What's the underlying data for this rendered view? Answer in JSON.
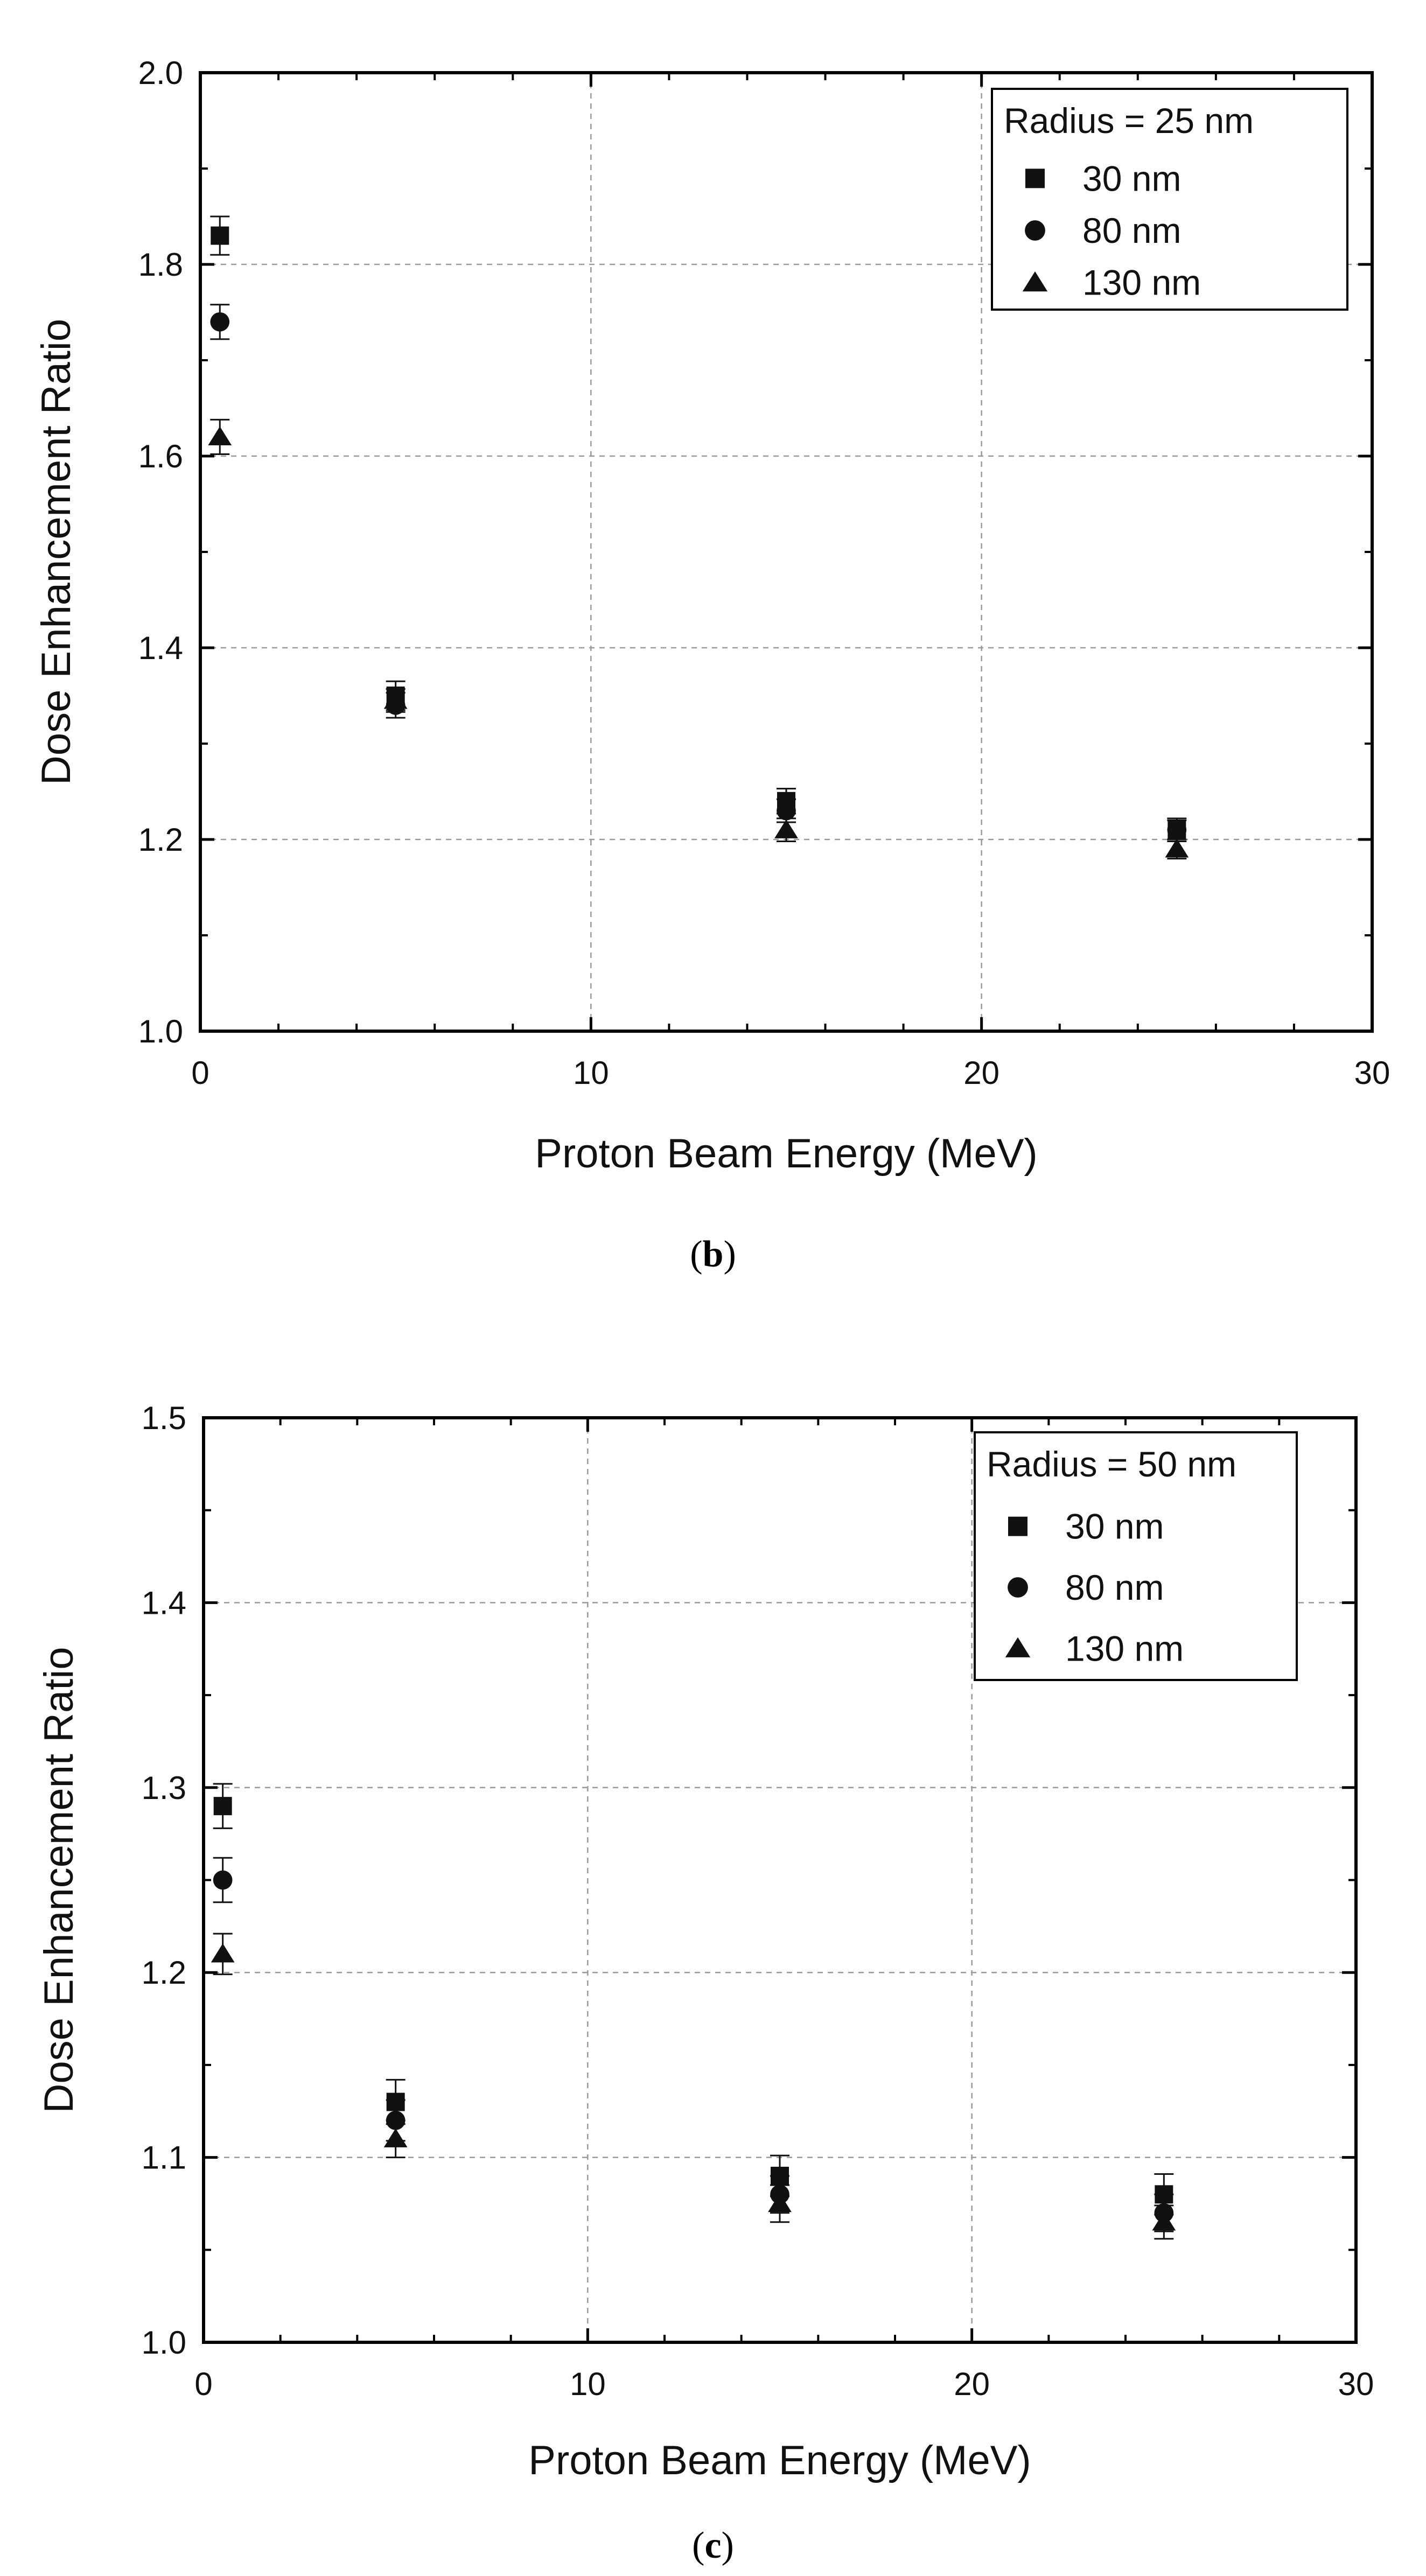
{
  "panels": [
    {
      "caption": {
        "open": "(",
        "letter": "b",
        "close": ")"
      }
    },
    {
      "caption": {
        "open": "(",
        "letter": "c",
        "close": ")"
      }
    }
  ],
  "colors": {
    "marker": "#111111",
    "grid": "#9a9a9a",
    "axis": "#000000"
  },
  "chart_data": [
    {
      "type": "scatter",
      "title": "",
      "xlabel": "Proton Beam Energy (MeV)",
      "ylabel": "Dose Enhancement Ratio",
      "xlim": [
        0,
        30
      ],
      "ylim": [
        1.0,
        2.0
      ],
      "xticks": [
        0,
        10,
        20,
        30
      ],
      "yticks": [
        1.0,
        1.2,
        1.4,
        1.6,
        1.8,
        2.0
      ],
      "xtick_labels": [
        "0",
        "10",
        "20",
        "30"
      ],
      "ytick_labels": [
        "1.0",
        "1.2",
        "1.4",
        "1.6",
        "1.8",
        "2.0"
      ],
      "grid": true,
      "legend_title": "Radius = 25 nm",
      "legend_position": "top-right",
      "series": [
        {
          "name": "30 nm",
          "marker": "square",
          "x": [
            0.5,
            5,
            15,
            25
          ],
          "y": [
            1.83,
            1.35,
            1.24,
            1.21
          ],
          "err": [
            0.02,
            0.015,
            0.013,
            0.012
          ]
        },
        {
          "name": "80 nm",
          "marker": "circle",
          "x": [
            0.5,
            5,
            15,
            25
          ],
          "y": [
            1.74,
            1.34,
            1.23,
            1.21
          ],
          "err": [
            0.018,
            0.013,
            0.012,
            0.01
          ]
        },
        {
          "name": "130 nm",
          "marker": "triangle",
          "x": [
            0.5,
            5,
            15,
            25
          ],
          "y": [
            1.62,
            1.345,
            1.21,
            1.19
          ],
          "err": [
            0.018,
            0.012,
            0.012,
            0.01
          ]
        }
      ]
    },
    {
      "type": "scatter",
      "title": "",
      "xlabel": "Proton Beam Energy (MeV)",
      "ylabel": "Dose Enhancement Ratio",
      "xlim": [
        0,
        30
      ],
      "ylim": [
        1.0,
        1.5
      ],
      "xticks": [
        0,
        10,
        20,
        30
      ],
      "yticks": [
        1.0,
        1.1,
        1.2,
        1.3,
        1.4,
        1.5
      ],
      "xtick_labels": [
        "0",
        "10",
        "20",
        "30"
      ],
      "ytick_labels": [
        "1.0",
        "1.1",
        "1.2",
        "1.3",
        "1.4",
        "1.5"
      ],
      "grid": true,
      "legend_title": "Radius = 50 nm",
      "legend_position": "top-right",
      "series": [
        {
          "name": "30 nm",
          "marker": "square",
          "x": [
            0.5,
            5,
            15,
            25
          ],
          "y": [
            1.29,
            1.13,
            1.09,
            1.08
          ],
          "err": [
            0.012,
            0.012,
            0.011,
            0.011
          ]
        },
        {
          "name": "80 nm",
          "marker": "circle",
          "x": [
            0.5,
            5,
            15,
            25
          ],
          "y": [
            1.25,
            1.12,
            1.08,
            1.07
          ],
          "err": [
            0.012,
            0.011,
            0.01,
            0.01
          ]
        },
        {
          "name": "130 nm",
          "marker": "triangle",
          "x": [
            0.5,
            5,
            15,
            25
          ],
          "y": [
            1.21,
            1.11,
            1.075,
            1.065
          ],
          "err": [
            0.011,
            0.01,
            0.01,
            0.009
          ]
        }
      ]
    }
  ]
}
